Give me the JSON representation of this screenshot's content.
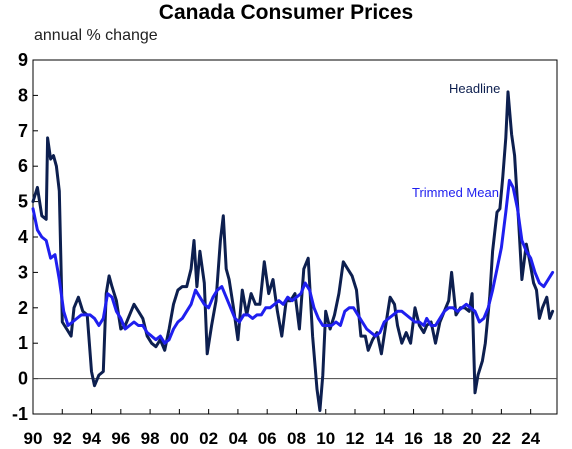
{
  "chart_data": {
    "type": "line",
    "title": "Canada Consumer Prices",
    "subtitle": "annual % change",
    "ylim": [
      -1,
      9
    ],
    "yticks": [
      -1,
      0,
      1,
      2,
      3,
      4,
      5,
      6,
      7,
      8,
      9
    ],
    "xlim": [
      1990,
      2025.8
    ],
    "xticks": [
      {
        "label": "90",
        "year": 1990
      },
      {
        "label": "92",
        "year": 1992
      },
      {
        "label": "94",
        "year": 1994
      },
      {
        "label": "96",
        "year": 1996
      },
      {
        "label": "98",
        "year": 1998
      },
      {
        "label": "00",
        "year": 2000
      },
      {
        "label": "02",
        "year": 2002
      },
      {
        "label": "04",
        "year": 2004
      },
      {
        "label": "06",
        "year": 2006
      },
      {
        "label": "08",
        "year": 2008
      },
      {
        "label": "10",
        "year": 2010
      },
      {
        "label": "12",
        "year": 2012
      },
      {
        "label": "14",
        "year": 2014
      },
      {
        "label": "16",
        "year": 2016
      },
      {
        "label": "18",
        "year": 2018
      },
      {
        "label": "20",
        "year": 2020
      },
      {
        "label": "22",
        "year": 2022
      },
      {
        "label": "24",
        "year": 2024
      }
    ],
    "zero_line": true,
    "grid": false,
    "series": [
      {
        "name": "Headline",
        "color": "#0d1f4f",
        "points": [
          [
            1990.0,
            5.0
          ],
          [
            1990.3,
            5.4
          ],
          [
            1990.6,
            4.6
          ],
          [
            1990.9,
            4.5
          ],
          [
            1991.0,
            6.8
          ],
          [
            1991.2,
            6.2
          ],
          [
            1991.4,
            6.3
          ],
          [
            1991.6,
            6.0
          ],
          [
            1991.8,
            5.3
          ],
          [
            1992.0,
            1.6
          ],
          [
            1992.3,
            1.4
          ],
          [
            1992.6,
            1.2
          ],
          [
            1992.8,
            2.0
          ],
          [
            1993.1,
            2.3
          ],
          [
            1993.4,
            1.9
          ],
          [
            1993.7,
            1.8
          ],
          [
            1994.0,
            0.2
          ],
          [
            1994.2,
            -0.2
          ],
          [
            1994.5,
            0.1
          ],
          [
            1994.8,
            0.2
          ],
          [
            1995.0,
            2.4
          ],
          [
            1995.2,
            2.9
          ],
          [
            1995.4,
            2.6
          ],
          [
            1995.7,
            2.2
          ],
          [
            1996.0,
            1.4
          ],
          [
            1996.3,
            1.5
          ],
          [
            1996.6,
            1.8
          ],
          [
            1996.9,
            2.1
          ],
          [
            1997.2,
            1.9
          ],
          [
            1997.5,
            1.7
          ],
          [
            1997.8,
            1.2
          ],
          [
            1998.1,
            1.0
          ],
          [
            1998.4,
            0.9
          ],
          [
            1998.7,
            1.1
          ],
          [
            1999.0,
            0.8
          ],
          [
            1999.3,
            1.4
          ],
          [
            1999.6,
            2.1
          ],
          [
            1999.9,
            2.5
          ],
          [
            2000.2,
            2.6
          ],
          [
            2000.5,
            2.6
          ],
          [
            2000.8,
            3.1
          ],
          [
            2001.0,
            3.9
          ],
          [
            2001.2,
            2.6
          ],
          [
            2001.4,
            3.6
          ],
          [
            2001.7,
            2.7
          ],
          [
            2001.9,
            0.7
          ],
          [
            2002.2,
            1.5
          ],
          [
            2002.5,
            2.2
          ],
          [
            2002.8,
            3.9
          ],
          [
            2003.0,
            4.6
          ],
          [
            2003.2,
            3.1
          ],
          [
            2003.4,
            2.8
          ],
          [
            2003.7,
            2.0
          ],
          [
            2004.0,
            1.1
          ],
          [
            2004.3,
            2.5
          ],
          [
            2004.6,
            1.8
          ],
          [
            2004.9,
            2.4
          ],
          [
            2005.2,
            2.1
          ],
          [
            2005.5,
            2.1
          ],
          [
            2005.8,
            3.3
          ],
          [
            2006.1,
            2.4
          ],
          [
            2006.4,
            2.8
          ],
          [
            2006.7,
            1.9
          ],
          [
            2007.0,
            1.2
          ],
          [
            2007.3,
            2.2
          ],
          [
            2007.6,
            2.2
          ],
          [
            2007.9,
            2.4
          ],
          [
            2008.2,
            1.4
          ],
          [
            2008.5,
            3.1
          ],
          [
            2008.8,
            3.4
          ],
          [
            2009.1,
            1.2
          ],
          [
            2009.4,
            -0.3
          ],
          [
            2009.6,
            -0.9
          ],
          [
            2009.8,
            0.1
          ],
          [
            2010.0,
            1.9
          ],
          [
            2010.3,
            1.4
          ],
          [
            2010.6,
            1.8
          ],
          [
            2010.9,
            2.4
          ],
          [
            2011.2,
            3.3
          ],
          [
            2011.5,
            3.1
          ],
          [
            2011.8,
            2.9
          ],
          [
            2012.1,
            2.5
          ],
          [
            2012.4,
            1.2
          ],
          [
            2012.7,
            1.2
          ],
          [
            2012.9,
            0.8
          ],
          [
            2013.2,
            1.1
          ],
          [
            2013.5,
            1.3
          ],
          [
            2013.8,
            0.7
          ],
          [
            2014.1,
            1.5
          ],
          [
            2014.4,
            2.3
          ],
          [
            2014.7,
            2.1
          ],
          [
            2014.9,
            1.5
          ],
          [
            2015.2,
            1.0
          ],
          [
            2015.5,
            1.3
          ],
          [
            2015.8,
            1.0
          ],
          [
            2016.1,
            2.0
          ],
          [
            2016.4,
            1.5
          ],
          [
            2016.7,
            1.3
          ],
          [
            2016.9,
            1.5
          ],
          [
            2017.2,
            1.6
          ],
          [
            2017.5,
            1.0
          ],
          [
            2017.8,
            1.6
          ],
          [
            2018.1,
            1.9
          ],
          [
            2018.4,
            2.2
          ],
          [
            2018.6,
            3.0
          ],
          [
            2018.9,
            1.8
          ],
          [
            2019.2,
            2.0
          ],
          [
            2019.5,
            2.0
          ],
          [
            2019.8,
            1.9
          ],
          [
            2020.0,
            2.4
          ],
          [
            2020.2,
            -0.4
          ],
          [
            2020.4,
            0.1
          ],
          [
            2020.7,
            0.5
          ],
          [
            2020.9,
            1.0
          ],
          [
            2021.2,
            2.3
          ],
          [
            2021.4,
            3.6
          ],
          [
            2021.7,
            4.7
          ],
          [
            2021.9,
            4.8
          ],
          [
            2022.1,
            5.7
          ],
          [
            2022.3,
            6.8
          ],
          [
            2022.45,
            8.1
          ],
          [
            2022.7,
            6.9
          ],
          [
            2022.9,
            6.3
          ],
          [
            2023.2,
            4.3
          ],
          [
            2023.4,
            2.8
          ],
          [
            2023.7,
            3.8
          ],
          [
            2023.9,
            3.4
          ],
          [
            2024.2,
            2.7
          ],
          [
            2024.4,
            2.5
          ],
          [
            2024.6,
            1.7
          ],
          [
            2024.8,
            2.0
          ],
          [
            2025.1,
            2.3
          ],
          [
            2025.3,
            1.7
          ],
          [
            2025.5,
            1.9
          ]
        ],
        "label": "Headline"
      },
      {
        "name": "Trimmed Mean",
        "color": "#1f1fef",
        "points": [
          [
            1990.0,
            4.8
          ],
          [
            1990.3,
            4.2
          ],
          [
            1990.6,
            4.0
          ],
          [
            1990.9,
            3.9
          ],
          [
            1991.2,
            3.4
          ],
          [
            1991.5,
            3.5
          ],
          [
            1991.8,
            2.8
          ],
          [
            1992.1,
            1.9
          ],
          [
            1992.4,
            1.5
          ],
          [
            1992.7,
            1.6
          ],
          [
            1993.0,
            1.7
          ],
          [
            1993.3,
            1.8
          ],
          [
            1993.6,
            1.8
          ],
          [
            1993.9,
            1.8
          ],
          [
            1994.2,
            1.7
          ],
          [
            1994.5,
            1.5
          ],
          [
            1994.8,
            1.7
          ],
          [
            1995.1,
            2.4
          ],
          [
            1995.4,
            2.3
          ],
          [
            1995.7,
            1.9
          ],
          [
            1996.0,
            1.7
          ],
          [
            1996.3,
            1.4
          ],
          [
            1996.6,
            1.5
          ],
          [
            1996.9,
            1.6
          ],
          [
            1997.2,
            1.5
          ],
          [
            1997.5,
            1.5
          ],
          [
            1997.8,
            1.3
          ],
          [
            1998.1,
            1.2
          ],
          [
            1998.4,
            1.1
          ],
          [
            1998.7,
            1.2
          ],
          [
            1999.0,
            1.0
          ],
          [
            1999.3,
            1.1
          ],
          [
            1999.6,
            1.4
          ],
          [
            1999.9,
            1.6
          ],
          [
            2000.2,
            1.7
          ],
          [
            2000.5,
            1.9
          ],
          [
            2000.8,
            2.1
          ],
          [
            2001.1,
            2.5
          ],
          [
            2001.4,
            2.3
          ],
          [
            2001.7,
            2.1
          ],
          [
            2002.0,
            2.0
          ],
          [
            2002.3,
            2.3
          ],
          [
            2002.6,
            2.5
          ],
          [
            2002.9,
            2.6
          ],
          [
            2003.2,
            2.3
          ],
          [
            2003.5,
            2.0
          ],
          [
            2003.8,
            1.7
          ],
          [
            2004.1,
            1.6
          ],
          [
            2004.4,
            1.8
          ],
          [
            2004.7,
            1.8
          ],
          [
            2005.0,
            1.7
          ],
          [
            2005.3,
            1.8
          ],
          [
            2005.6,
            1.8
          ],
          [
            2005.9,
            2.0
          ],
          [
            2006.2,
            2.0
          ],
          [
            2006.5,
            2.1
          ],
          [
            2006.8,
            2.2
          ],
          [
            2007.1,
            2.1
          ],
          [
            2007.4,
            2.3
          ],
          [
            2007.7,
            2.2
          ],
          [
            2008.0,
            2.3
          ],
          [
            2008.3,
            2.4
          ],
          [
            2008.6,
            2.7
          ],
          [
            2008.9,
            2.5
          ],
          [
            2009.2,
            2.0
          ],
          [
            2009.5,
            1.7
          ],
          [
            2009.8,
            1.5
          ],
          [
            2010.1,
            1.5
          ],
          [
            2010.4,
            1.5
          ],
          [
            2010.7,
            1.6
          ],
          [
            2011.0,
            1.5
          ],
          [
            2011.3,
            1.9
          ],
          [
            2011.6,
            2.0
          ],
          [
            2011.9,
            2.0
          ],
          [
            2012.2,
            1.8
          ],
          [
            2012.5,
            1.6
          ],
          [
            2012.8,
            1.4
          ],
          [
            2013.1,
            1.3
          ],
          [
            2013.4,
            1.2
          ],
          [
            2013.7,
            1.3
          ],
          [
            2014.0,
            1.6
          ],
          [
            2014.3,
            1.7
          ],
          [
            2014.6,
            1.8
          ],
          [
            2014.9,
            1.9
          ],
          [
            2015.2,
            1.9
          ],
          [
            2015.5,
            1.8
          ],
          [
            2015.8,
            1.7
          ],
          [
            2016.1,
            1.6
          ],
          [
            2016.4,
            1.6
          ],
          [
            2016.7,
            1.5
          ],
          [
            2016.9,
            1.7
          ],
          [
            2017.2,
            1.5
          ],
          [
            2017.5,
            1.5
          ],
          [
            2017.8,
            1.7
          ],
          [
            2018.1,
            1.9
          ],
          [
            2018.4,
            2.0
          ],
          [
            2018.7,
            2.0
          ],
          [
            2019.0,
            1.9
          ],
          [
            2019.3,
            2.0
          ],
          [
            2019.6,
            2.1
          ],
          [
            2019.9,
            2.0
          ],
          [
            2020.2,
            1.9
          ],
          [
            2020.5,
            1.6
          ],
          [
            2020.8,
            1.7
          ],
          [
            2021.1,
            2.0
          ],
          [
            2021.4,
            2.5
          ],
          [
            2021.7,
            3.1
          ],
          [
            2022.0,
            3.7
          ],
          [
            2022.3,
            4.7
          ],
          [
            2022.55,
            5.6
          ],
          [
            2022.8,
            5.4
          ],
          [
            2023.1,
            4.8
          ],
          [
            2023.4,
            3.9
          ],
          [
            2023.7,
            3.6
          ],
          [
            2024.0,
            3.4
          ],
          [
            2024.3,
            3.0
          ],
          [
            2024.6,
            2.7
          ],
          [
            2024.9,
            2.6
          ],
          [
            2025.2,
            2.8
          ],
          [
            2025.5,
            3.0
          ]
        ],
        "label": "Trimmed Mean"
      }
    ]
  }
}
